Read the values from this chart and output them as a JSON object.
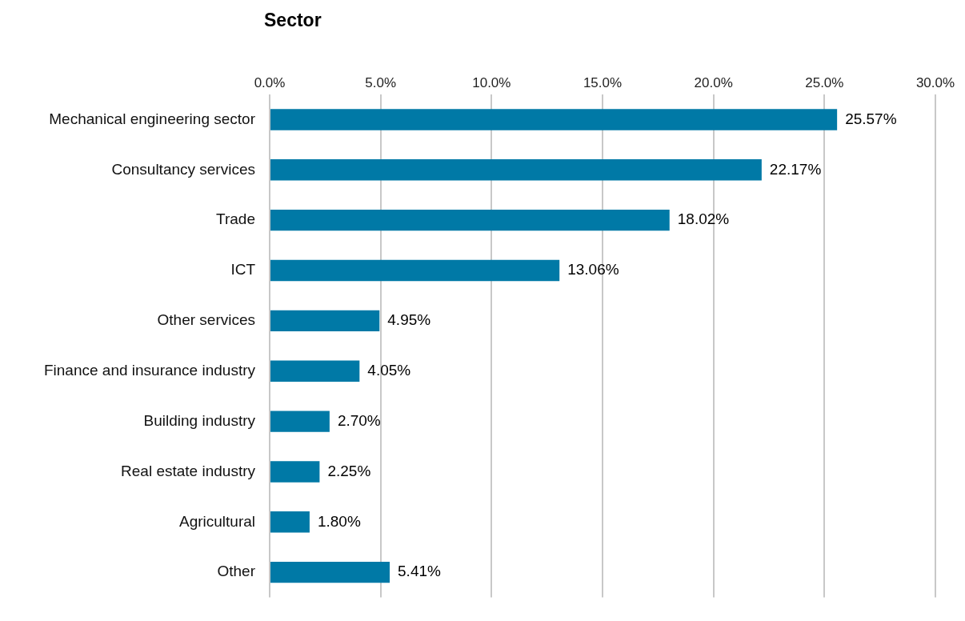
{
  "chart_data": {
    "type": "bar",
    "orientation": "horizontal",
    "title": "Sector",
    "categories": [
      "Mechanical engineering sector",
      "Consultancy services",
      "Trade",
      "ICT",
      "Other services",
      "Finance and insurance industry",
      "Building industry",
      "Real estate industry",
      "Agricultural",
      "Other"
    ],
    "values": [
      25.57,
      22.17,
      18.02,
      13.06,
      4.95,
      4.05,
      2.7,
      2.25,
      1.8,
      5.41
    ],
    "value_labels": [
      "25.57%",
      "22.17%",
      "18.02%",
      "13.06%",
      "4.95%",
      "4.05%",
      "2.70%",
      "2.25%",
      "1.80%",
      "5.41%"
    ],
    "color": "#0079a6",
    "xlim": [
      0,
      30
    ],
    "xticks": [
      {
        "value": 0,
        "label": "0.0%"
      },
      {
        "value": 5,
        "label": "5.0%"
      },
      {
        "value": 10,
        "label": "10.0%"
      },
      {
        "value": 15,
        "label": "15.0%"
      },
      {
        "value": 20,
        "label": "20.0%"
      },
      {
        "value": 25,
        "label": "25.0%"
      },
      {
        "value": 30,
        "label": "30.0%"
      }
    ],
    "grid": "x",
    "legend": false
  }
}
